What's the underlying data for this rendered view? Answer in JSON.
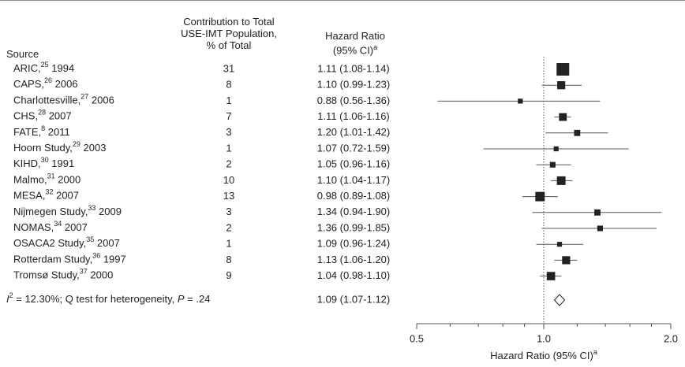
{
  "header": {
    "source": "Source",
    "contribution_line1": "Contribution to Total",
    "contribution_line2": "USE-IMT Population,",
    "contribution_line3": "% of Total",
    "hr_line1": "Hazard Ratio",
    "hr_line2": "(95% CI)",
    "hr_sup": "a"
  },
  "chart_data": {
    "type": "forest",
    "x_scale": "log",
    "xlim": [
      0.5,
      2.0
    ],
    "xticks": [
      {
        "value": 0.5,
        "label": "0.5"
      },
      {
        "value": 1.0,
        "label": "1.0"
      },
      {
        "value": 2.0,
        "label": "2.0"
      }
    ],
    "minor_ticks": [
      0.6,
      0.7,
      0.8,
      0.9,
      1.2,
      1.4,
      1.6,
      1.8
    ],
    "reference_line": 1.0,
    "xlabel": "Hazard Ratio (95% CI)",
    "xlabel_sup": "a",
    "studies": [
      {
        "name": "ARIC,",
        "ref": "25",
        "year": "1994",
        "contribution": "31",
        "hr_text": "1.11 (1.08-1.14)",
        "hr": 1.11,
        "lo": 1.08,
        "hi": 1.14
      },
      {
        "name": "CAPS,",
        "ref": "26",
        "year": "2006",
        "contribution": "8",
        "hr_text": "1.10 (0.99-1.23)",
        "hr": 1.1,
        "lo": 0.99,
        "hi": 1.23
      },
      {
        "name": "Charlottesville,",
        "ref": "27",
        "year": "2006",
        "contribution": "1",
        "hr_text": "0.88 (0.56-1.36)",
        "hr": 0.88,
        "lo": 0.56,
        "hi": 1.36
      },
      {
        "name": "CHS,",
        "ref": "28",
        "year": "2007",
        "contribution": "7",
        "hr_text": "1.11 (1.06-1.16)",
        "hr": 1.11,
        "lo": 1.06,
        "hi": 1.16
      },
      {
        "name": "FATE,",
        "ref": "8",
        "year": "2011",
        "contribution": "3",
        "hr_text": "1.20 (1.01-1.42)",
        "hr": 1.2,
        "lo": 1.01,
        "hi": 1.42
      },
      {
        "name": "Hoorn Study,",
        "ref": "29",
        "year": "2003",
        "contribution": "1",
        "hr_text": "1.07 (0.72-1.59)",
        "hr": 1.07,
        "lo": 0.72,
        "hi": 1.59
      },
      {
        "name": "KIHD,",
        "ref": "30",
        "year": "1991",
        "contribution": "2",
        "hr_text": "1.05 (0.96-1.16)",
        "hr": 1.05,
        "lo": 0.96,
        "hi": 1.16
      },
      {
        "name": "Malmo,",
        "ref": "31",
        "year": "2000",
        "contribution": "10",
        "hr_text": "1.10 (1.04-1.17)",
        "hr": 1.1,
        "lo": 1.04,
        "hi": 1.17
      },
      {
        "name": "MESA,",
        "ref": "32",
        "year": "2007",
        "contribution": "13",
        "hr_text": "0.98 (0.89-1.08)",
        "hr": 0.98,
        "lo": 0.89,
        "hi": 1.08
      },
      {
        "name": "Nijmegen Study,",
        "ref": "33",
        "year": "2009",
        "contribution": "3",
        "hr_text": "1.34 (0.94-1.90)",
        "hr": 1.34,
        "lo": 0.94,
        "hi": 1.9
      },
      {
        "name": "NOMAS,",
        "ref": "34",
        "year": "2007",
        "contribution": "2",
        "hr_text": "1.36 (0.99-1.85)",
        "hr": 1.36,
        "lo": 0.99,
        "hi": 1.85
      },
      {
        "name": "OSACA2 Study,",
        "ref": "35",
        "year": "2007",
        "contribution": "1",
        "hr_text": "1.09 (0.96-1.24)",
        "hr": 1.09,
        "lo": 0.96,
        "hi": 1.24
      },
      {
        "name": "Rotterdam Study,",
        "ref": "36",
        "year": "1997",
        "contribution": "8",
        "hr_text": "1.13 (1.06-1.20)",
        "hr": 1.13,
        "lo": 1.06,
        "hi": 1.2
      },
      {
        "name": "Tromsø Study,",
        "ref": "37",
        "year": "2000",
        "contribution": "9",
        "hr_text": "1.04 (0.98-1.10)",
        "hr": 1.04,
        "lo": 0.98,
        "hi": 1.1
      }
    ],
    "pooled": {
      "label_i": "I",
      "label_sup": "2",
      "label_rest": " = 12.30%; Q test for heterogeneity, ",
      "label_p": "P",
      "label_p_val": " = .24",
      "hr_text": "1.09 (1.07-1.12)",
      "hr": 1.09,
      "lo": 1.07,
      "hi": 1.12
    }
  },
  "colors": {
    "marker": "#222222",
    "line": "#555555",
    "ref": "#555555"
  }
}
